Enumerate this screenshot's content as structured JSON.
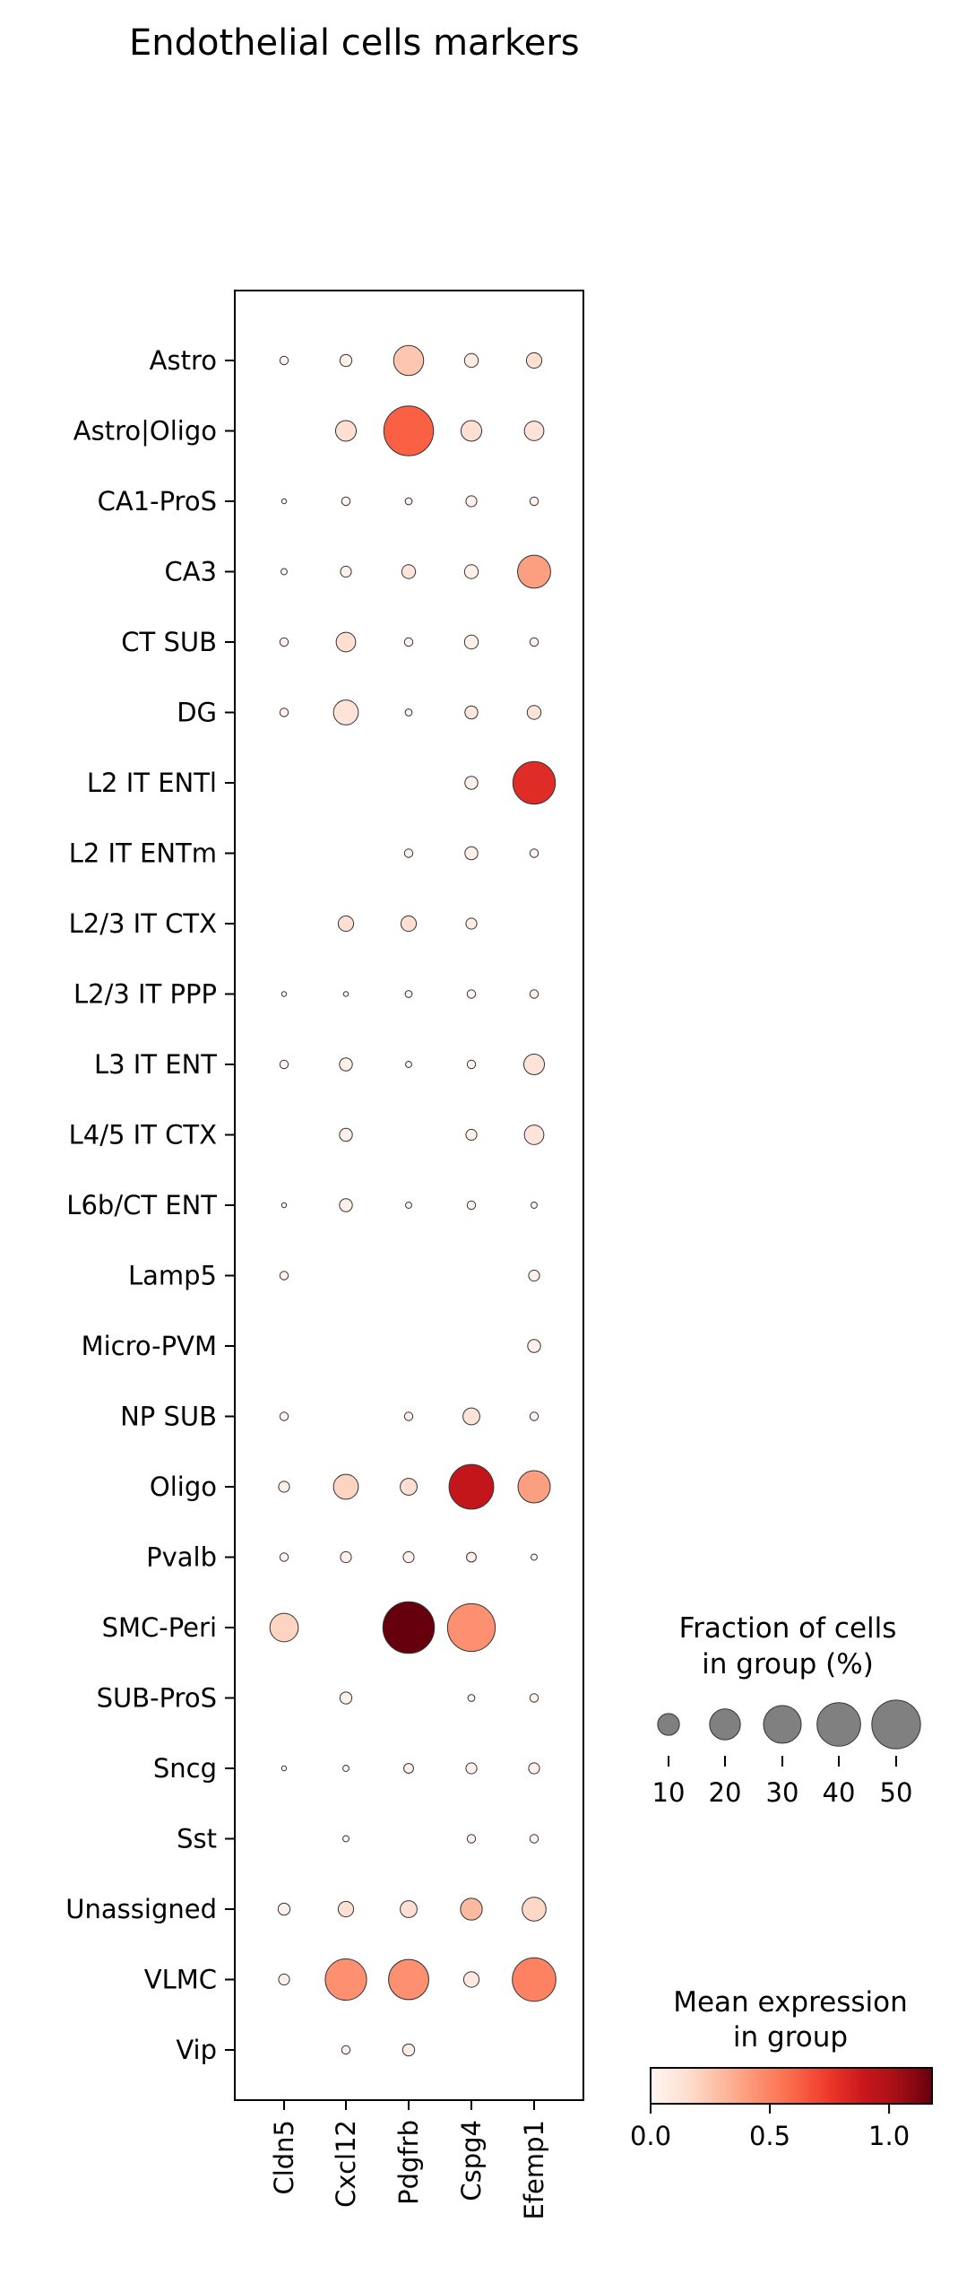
{
  "chart_data": {
    "type": "dotplot",
    "title": "Endothelial cells markers",
    "genes": [
      "Cldn5",
      "Cxcl12",
      "Pdgfrb",
      "Cspg4",
      "Efemp1"
    ],
    "groups": [
      "Astro",
      "Astro|Oligo",
      "CA1-ProS",
      "CA3",
      "CT SUB",
      "DG",
      "L2 IT ENTl",
      "L2 IT ENTm",
      "L2/3 IT CTX",
      "L2/3 IT PPP",
      "L3 IT ENT",
      "L4/5 IT CTX",
      "L6b/CT ENT",
      "Lamp5",
      "Micro-PVM",
      "NP SUB",
      "Oligo",
      "Pvalb",
      "SMC-Peri",
      "SUB-ProS",
      "Sncg",
      "Sst",
      "Unassigned",
      "VLMC",
      "Vip"
    ],
    "fraction_percent": [
      [
        1.5,
        3,
        19,
        4,
        5
      ],
      [
        null,
        9,
        52,
        9,
        8
      ],
      [
        0.5,
        1.5,
        1,
        2.5,
        1.5
      ],
      [
        0.8,
        2.5,
        4,
        4,
        23
      ],
      [
        1.5,
        8,
        1.5,
        4,
        1.5
      ],
      [
        1.5,
        13,
        1,
        3.5,
        4
      ],
      [
        null,
        null,
        null,
        3.5,
        38
      ],
      [
        null,
        null,
        1.5,
        3.5,
        1.5
      ],
      [
        null,
        5,
        5,
        2.5,
        null
      ],
      [
        0.5,
        0.5,
        1,
        1.5,
        1.5
      ],
      [
        1.5,
        3.5,
        0.8,
        1.5,
        9
      ],
      [
        null,
        3.5,
        null,
        2.5,
        8
      ],
      [
        0.5,
        3.5,
        0.8,
        1.5,
        0.8
      ],
      [
        1.5,
        null,
        null,
        null,
        2.5
      ],
      [
        null,
        null,
        null,
        null,
        3.5
      ],
      [
        1.5,
        null,
        1.5,
        6,
        1.5
      ],
      [
        2.5,
        13,
        6,
        42,
        22
      ],
      [
        1.5,
        2.5,
        2.5,
        2,
        0.8
      ],
      [
        17,
        null,
        56,
        48,
        null
      ],
      [
        null,
        3,
        null,
        1,
        1.5
      ],
      [
        0.5,
        0.8,
        2,
        2.5,
        2.5
      ],
      [
        null,
        0.8,
        null,
        1.5,
        1.5
      ],
      [
        3,
        5,
        6,
        10,
        12
      ],
      [
        2.5,
        36,
        34,
        5,
        40
      ],
      [
        null,
        1.5,
        3,
        null,
        null
      ]
    ],
    "mean_expression": [
      [
        0.02,
        0.03,
        0.25,
        0.08,
        0.15
      ],
      [
        null,
        0.15,
        0.62,
        0.15,
        0.12
      ],
      [
        0.01,
        0.02,
        0.02,
        0.03,
        0.03
      ],
      [
        0.01,
        0.02,
        0.12,
        0.03,
        0.4
      ],
      [
        0.02,
        0.15,
        0.02,
        0.03,
        0.02
      ],
      [
        0.02,
        0.12,
        0.02,
        0.1,
        0.12
      ],
      [
        null,
        null,
        null,
        0.03,
        0.8
      ],
      [
        null,
        null,
        0.02,
        0.03,
        0.02
      ],
      [
        null,
        0.15,
        0.15,
        0.05,
        null
      ],
      [
        0.01,
        0.01,
        0.02,
        0.02,
        0.03
      ],
      [
        0.02,
        0.03,
        0.01,
        0.02,
        0.12
      ],
      [
        null,
        0.03,
        null,
        0.03,
        0.12
      ],
      [
        0.01,
        0.03,
        0.01,
        0.02,
        0.02
      ],
      [
        0.02,
        null,
        null,
        null,
        0.03
      ],
      [
        null,
        null,
        null,
        null,
        0.03
      ],
      [
        0.02,
        null,
        0.03,
        0.12,
        0.02
      ],
      [
        0.03,
        0.2,
        0.15,
        0.92,
        0.4
      ],
      [
        0.02,
        0.03,
        0.03,
        0.03,
        0.02
      ],
      [
        0.2,
        null,
        1.18,
        0.45,
        null
      ],
      [
        null,
        0.03,
        null,
        0.02,
        0.03
      ],
      [
        0.01,
        0.02,
        0.03,
        0.03,
        0.03
      ],
      [
        null,
        0.02,
        null,
        0.03,
        0.03
      ],
      [
        0.03,
        0.15,
        0.15,
        0.3,
        0.18
      ],
      [
        0.03,
        0.45,
        0.45,
        0.1,
        0.5
      ],
      [
        null,
        0.03,
        0.05,
        null,
        null
      ]
    ],
    "size_legend": {
      "title": "Fraction of cells in group (%)",
      "values": [
        10,
        20,
        30,
        40,
        50
      ]
    },
    "color_legend": {
      "title": "Mean expression in group",
      "colormap": "Reds",
      "range": [
        0,
        1.18
      ],
      "ticks": [
        0.0,
        0.5,
        1.0
      ]
    },
    "colors": {
      "cmap_stops": [
        "#fff5f0",
        "#fee0d2",
        "#fcbba1",
        "#fc9272",
        "#fb6a4a",
        "#ef3b2c",
        "#cb181d",
        "#a50f15",
        "#67000d"
      ],
      "legend_dot": "#808080"
    }
  }
}
